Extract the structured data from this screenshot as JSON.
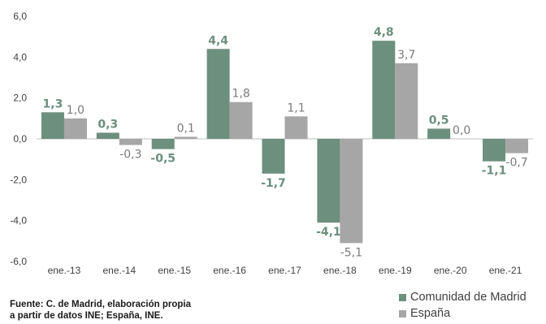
{
  "chart_data": {
    "type": "bar",
    "categories": [
      "ene.-13",
      "ene.-14",
      "ene.-15",
      "ene.-16",
      "ene.-17",
      "ene.-18",
      "ene.-19",
      "ene.-20",
      "ene.-21"
    ],
    "series": [
      {
        "name": "Comunidad de Madrid",
        "values": [
          1.3,
          0.3,
          -0.5,
          4.4,
          -1.7,
          -4.1,
          4.8,
          0.5,
          -1.1
        ],
        "labels": [
          "1,3",
          "0,3",
          "-0,5",
          "4,4",
          "-1,7",
          "-4,1",
          "4,8",
          "0,5",
          "-1,1"
        ],
        "color": "#6c8f7e"
      },
      {
        "name": "España",
        "values": [
          1.0,
          -0.3,
          0.1,
          1.8,
          1.1,
          -5.1,
          3.7,
          0.0,
          -0.7
        ],
        "labels": [
          "1,0",
          "-0,3",
          "0,1",
          "1,8",
          "1,1",
          "-5,1",
          "3,7",
          "0,0",
          "-0,7"
        ],
        "color": "#a6a6a6"
      }
    ],
    "yticks": [
      "6,0",
      "4,0",
      "2,0",
      "0,0",
      "-2,0",
      "-4,0",
      "-6,0"
    ],
    "ytick_values": [
      6,
      4,
      2,
      0,
      -2,
      -4,
      -6
    ],
    "ylim": [
      -6,
      6
    ],
    "grid": false,
    "legend_position": "bottom-right",
    "title": "",
    "xlabel": "",
    "ylabel": ""
  },
  "source": {
    "line1": "Fuente: C. de Madrid, elaboración propia",
    "line2": "a partir de datos INE; España, INE."
  }
}
